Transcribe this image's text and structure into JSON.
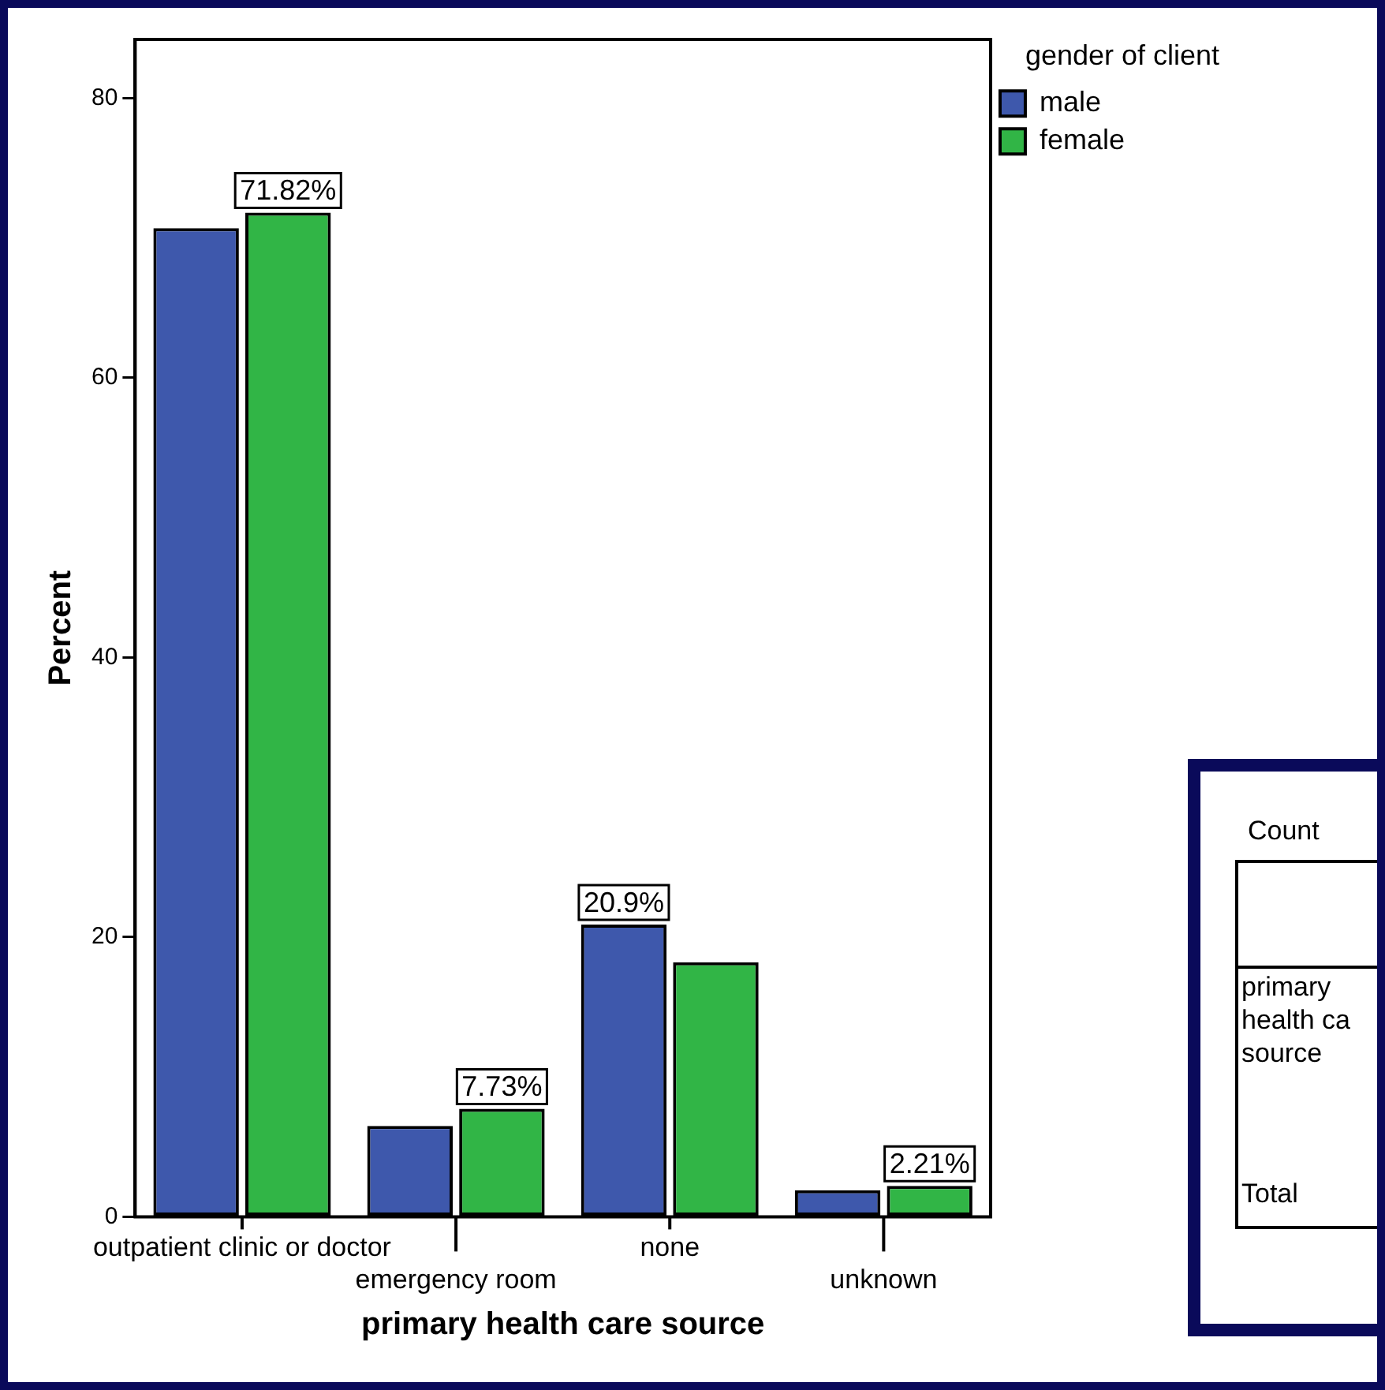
{
  "chart_data": {
    "type": "bar",
    "xlabel": "primary health care source",
    "ylabel": "Percent",
    "legend_title": "gender of client",
    "categories": [
      "outpatient clinic or doctor",
      "emergency room",
      "none",
      "unknown"
    ],
    "series": [
      {
        "name": "male",
        "color": "#3e58ac",
        "values": [
          70.7,
          6.5,
          20.9,
          1.9
        ],
        "value_labels": [
          null,
          null,
          "20.9%",
          null
        ]
      },
      {
        "name": "female",
        "color": "#31b546",
        "values": [
          71.82,
          7.73,
          18.2,
          2.21
        ],
        "value_labels": [
          "71.82%",
          "7.73%",
          null,
          "2.21%"
        ]
      }
    ],
    "ylim": [
      0,
      84.2
    ],
    "yticks": [
      0,
      20,
      40,
      60,
      80
    ],
    "grid": false,
    "legend": "top right",
    "annotations": [
      "Count",
      "primary health ca source",
      "Total"
    ]
  }
}
